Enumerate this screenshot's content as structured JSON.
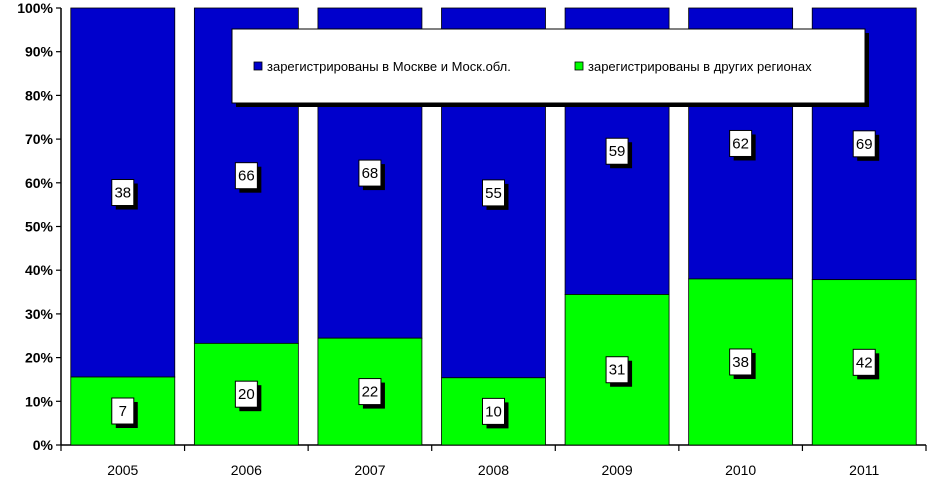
{
  "chart_data": {
    "type": "bar",
    "stacked": "percent",
    "categories": [
      "2005",
      "2006",
      "2007",
      "2008",
      "2009",
      "2010",
      "2011"
    ],
    "series": [
      {
        "name": "зарегистрированы в других регионах",
        "values": [
          7,
          20,
          22,
          10,
          31,
          38,
          42
        ],
        "color": "#00ff00"
      },
      {
        "name": "зарегистрированы в Москве и Моск.обл.",
        "values": [
          38,
          66,
          68,
          55,
          59,
          62,
          69
        ],
        "color": "#0000cc"
      }
    ],
    "y_tick_labels": [
      "0%",
      "10%",
      "20%",
      "30%",
      "40%",
      "50%",
      "60%",
      "70%",
      "80%",
      "90%",
      "100%"
    ],
    "ylim": [
      0,
      100
    ],
    "title": "",
    "xlabel": "",
    "ylabel": "",
    "grid": false,
    "legend_position": "top",
    "legend": [
      {
        "label": "зарегистрированы в Москве и Моск.обл.",
        "color": "#0000cc"
      },
      {
        "label": "зарегистрированы в других регионах",
        "color": "#00ff00"
      }
    ]
  }
}
